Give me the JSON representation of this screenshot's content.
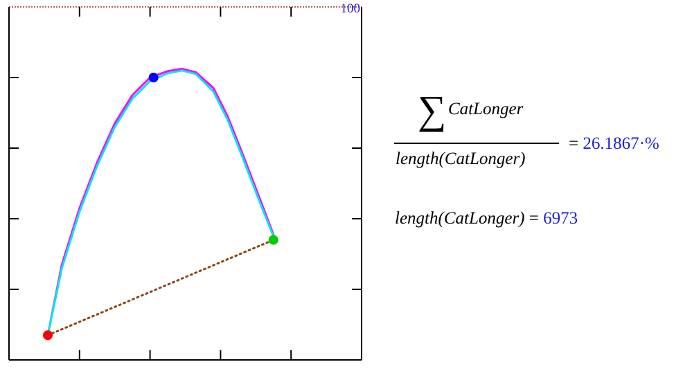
{
  "chart_data": {
    "type": "line",
    "top_tick_label": "100",
    "xlim": [
      0,
      100
    ],
    "ylim": [
      0,
      100
    ],
    "grid": false,
    "series": [
      {
        "color": "#ff00ff",
        "x": [
          11,
          15,
          20,
          25,
          30,
          35,
          40,
          45,
          49,
          53,
          58,
          62,
          66,
          71,
          75
        ],
        "y": [
          7,
          27,
          43,
          56,
          67,
          75,
          80,
          81.8,
          82.5,
          81.5,
          77,
          69,
          59,
          46,
          35.5
        ]
      },
      {
        "color": "#00e5ee",
        "x": [
          11,
          15,
          20,
          25,
          30,
          35,
          40,
          45,
          49,
          53,
          58,
          62,
          66,
          71,
          75
        ],
        "y": [
          7,
          26,
          42,
          55,
          66,
          74,
          79,
          81.2,
          82,
          81,
          76,
          68,
          58,
          45,
          35
        ]
      },
      {
        "color": "#8b4513",
        "style": "dotted",
        "x": [
          11,
          75
        ],
        "y": [
          7,
          34
        ]
      }
    ],
    "points": [
      {
        "color": "#ff0000",
        "x": 11,
        "y": 7
      },
      {
        "color": "#0000ff",
        "x": 41,
        "y": 80
      },
      {
        "color": "#00cc00",
        "x": 75,
        "y": 34
      }
    ]
  },
  "formulas": {
    "sum_symbol": "∑",
    "sum_variable": "CatLonger",
    "denominator_func": "length",
    "denominator_arg": "(CatLonger)",
    "equals": "=",
    "ratio_value": "26.1867·%",
    "length_func": "length",
    "length_arg": "(CatLonger)",
    "length_value": "6973"
  }
}
